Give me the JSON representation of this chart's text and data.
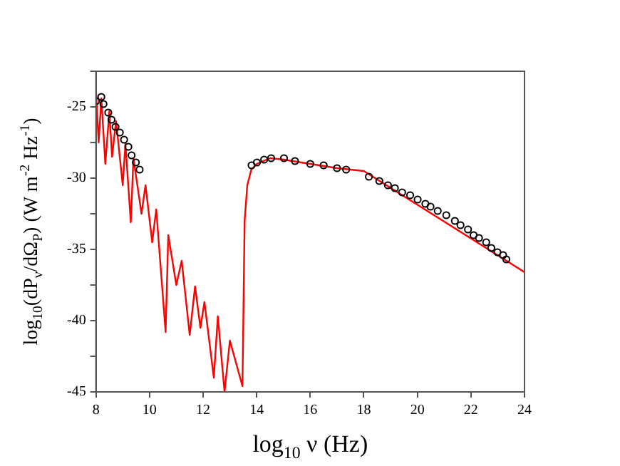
{
  "chart_data": {
    "type": "scatter",
    "xlabel": "log$_{10}$ ν (Hz)",
    "ylabel": "log$_{10}$(dP$_{ν}$/dΩ$_{P}$) (W m$^{-2}$ Hz$^{-1}$)",
    "xlim": [
      8,
      24
    ],
    "ylim": [
      -45,
      -22.5
    ],
    "xticks": [
      8,
      10,
      12,
      14,
      16,
      18,
      20,
      22,
      24
    ],
    "yticks": [
      -45,
      {
        "value": -42.5,
        "label": null
      },
      -40,
      {
        "value": -37.5,
        "label": null
      },
      -35,
      {
        "value": -32.5,
        "label": null
      },
      -30,
      {
        "value": -27.5,
        "label": null
      },
      -25,
      {
        "value": -22.5,
        "label": null
      }
    ],
    "grid": false,
    "series": [
      {
        "type": "line",
        "color": "#ff0000",
        "marker": "none",
        "line_style": "solid",
        "x": [
          8.0,
          8.1,
          8.2,
          8.35,
          8.5,
          8.6,
          8.75,
          9.0,
          9.1,
          9.3,
          9.4,
          9.7,
          9.85,
          10.1,
          10.25,
          10.6,
          10.7,
          11.0,
          11.2,
          11.5,
          11.7,
          11.9,
          12.05,
          12.4,
          12.55,
          12.8,
          13.0,
          13.47,
          13.55,
          13.65,
          13.8,
          14.0,
          14.5,
          15.0,
          16.0,
          17.0,
          18.0,
          24.0
        ],
        "values": [
          -23.8,
          -27.5,
          -24.4,
          -29,
          -25.3,
          -28.5,
          -26,
          -30.5,
          -27.6,
          -33.1,
          -28.6,
          -32.5,
          -30.5,
          -34.5,
          -32.2,
          -40.8,
          -34,
          -37.5,
          -35.8,
          -41,
          -37.6,
          -40.5,
          -38.7,
          -44,
          -39.7,
          -45,
          -41.4,
          -44.6,
          -33,
          -30.5,
          -29.4,
          -29.0,
          -28.6,
          -28.7,
          -29.0,
          -29.3,
          -29.5,
          -36.6
        ]
      },
      {
        "type": "scatter",
        "color": "#000000",
        "marker": "circle",
        "x": [
          8.0,
          8.2,
          8.28,
          8.46,
          8.58,
          8.73,
          8.89,
          9.05,
          9.21,
          9.33,
          9.49,
          9.63,
          13.81,
          14.01,
          14.28,
          14.54,
          15.02,
          15.43,
          16.0,
          16.5,
          17.0,
          17.34,
          18.19,
          18.58,
          18.9,
          19.16,
          19.43,
          19.73,
          20.01,
          20.3,
          20.49,
          20.76,
          21.08,
          21.4,
          21.61,
          21.89,
          22.1,
          22.3,
          22.57,
          22.76,
          22.99,
          23.2,
          23.32
        ],
        "values": [
          -24.6,
          -24.3,
          -24.8,
          -25.4,
          -25.9,
          -26.4,
          -26.8,
          -27.3,
          -27.8,
          -28.4,
          -28.9,
          -29.4,
          -29.1,
          -28.9,
          -28.7,
          -28.6,
          -28.6,
          -28.8,
          -29.0,
          -29.1,
          -29.3,
          -29.4,
          -29.9,
          -30.2,
          -30.5,
          -30.7,
          -31.0,
          -31.2,
          -31.5,
          -31.8,
          -32.0,
          -32.3,
          -32.6,
          -33.0,
          -33.3,
          -33.6,
          -34.0,
          -34.2,
          -34.5,
          -34.9,
          -35.2,
          -35.4,
          -35.7
        ]
      }
    ]
  }
}
